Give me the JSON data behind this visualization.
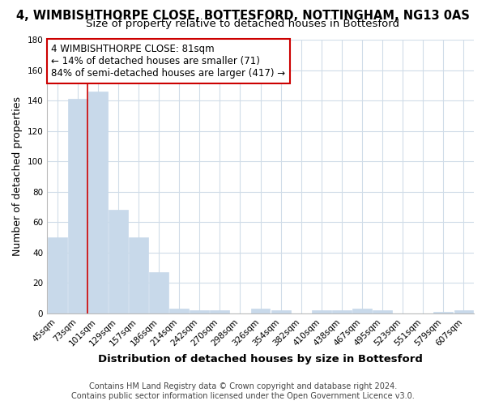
{
  "title": "4, WIMBISHTHORPE CLOSE, BOTTESFORD, NOTTINGHAM, NG13 0AS",
  "subtitle": "Size of property relative to detached houses in Bottesford",
  "xlabel": "Distribution of detached houses by size in Bottesford",
  "ylabel": "Number of detached properties",
  "categories": [
    "45sqm",
    "73sqm",
    "101sqm",
    "129sqm",
    "157sqm",
    "186sqm",
    "214sqm",
    "242sqm",
    "270sqm",
    "298sqm",
    "326sqm",
    "354sqm",
    "382sqm",
    "410sqm",
    "438sqm",
    "467sqm",
    "495sqm",
    "523sqm",
    "551sqm",
    "579sqm",
    "607sqm"
  ],
  "values": [
    50,
    141,
    146,
    68,
    50,
    27,
    3,
    2,
    2,
    0,
    3,
    2,
    0,
    2,
    2,
    3,
    2,
    0,
    0,
    1,
    2
  ],
  "bar_color": "#c8d9ea",
  "bar_edge_color": "#c8d9ea",
  "red_line_x": 1.5,
  "annotation_title": "4 WIMBISHTHORPE CLOSE: 81sqm",
  "annotation_line1": "← 14% of detached houses are smaller (71)",
  "annotation_line2": "84% of semi-detached houses are larger (417) →",
  "annotation_box_color": "#ffffff",
  "annotation_box_edge": "#cc0000",
  "red_line_color": "#cc0000",
  "ylim": [
    0,
    180
  ],
  "yticks": [
    0,
    20,
    40,
    60,
    80,
    100,
    120,
    140,
    160,
    180
  ],
  "footer1": "Contains HM Land Registry data © Crown copyright and database right 2024.",
  "footer2": "Contains public sector information licensed under the Open Government Licence v3.0.",
  "bg_color": "#ffffff",
  "plot_bg_color": "#ffffff",
  "grid_color": "#d0dce8",
  "title_fontsize": 10.5,
  "subtitle_fontsize": 9.5,
  "axis_label_fontsize": 9,
  "tick_fontsize": 7.5,
  "footer_fontsize": 7,
  "annot_fontsize": 8.5
}
